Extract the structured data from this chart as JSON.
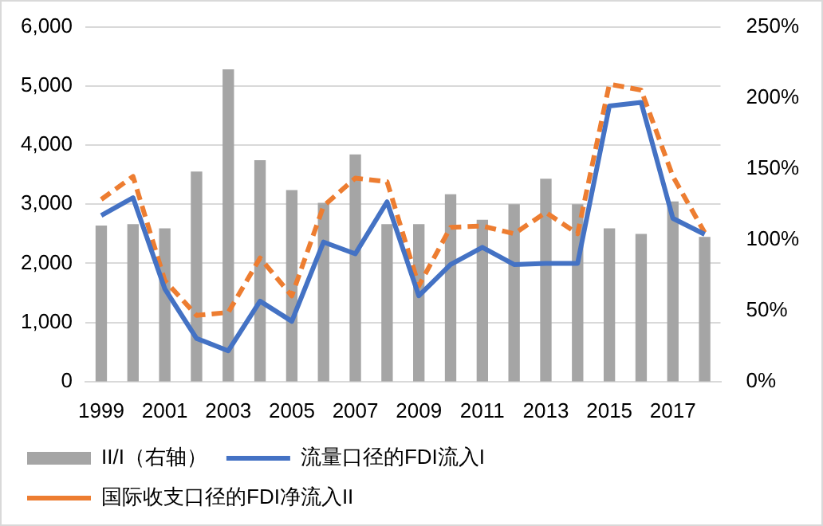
{
  "chart_data": {
    "type": "bar",
    "categories": [
      "1999",
      null,
      "2001",
      null,
      "2003",
      null,
      "2005",
      null,
      "2007",
      null,
      "2009",
      null,
      "2011",
      null,
      "2013",
      null,
      "2015",
      null,
      "2017",
      null
    ],
    "series": [
      {
        "name": "II/I（右轴）",
        "axis": "y2",
        "color": "#a5a5a5",
        "values": [
          110,
          111,
          108,
          148,
          220,
          156,
          135,
          126,
          160,
          111,
          111,
          132,
          114,
          125,
          143,
          125,
          108,
          104,
          127,
          102
        ]
      },
      {
        "name": "流量口径的FDI流入I",
        "type": "line",
        "color": "#4472c4",
        "line_style": "solid",
        "values": [
          2810,
          3110,
          1570,
          730,
          520,
          1360,
          1020,
          2360,
          2160,
          3040,
          1450,
          1980,
          2270,
          1980,
          2000,
          2000,
          4660,
          4720,
          2760,
          2490
        ]
      },
      {
        "name": "国际收支口径的FDI净流入II",
        "type": "line",
        "color": "#ed7d31",
        "line_style": "dashed",
        "values": [
          3080,
          3470,
          1710,
          1120,
          1170,
          2090,
          1450,
          2970,
          3440,
          3380,
          1620,
          2610,
          2630,
          2500,
          2860,
          2500,
          5030,
          4930,
          3470,
          2520
        ]
      }
    ],
    "ylim": [
      0,
      6000
    ],
    "yticks": [
      {
        "value": 0,
        "label": "0"
      },
      {
        "value": 1000,
        "label": "1,000"
      },
      {
        "value": 2000,
        "label": "2,000"
      },
      {
        "value": 3000,
        "label": "3,000"
      },
      {
        "value": 4000,
        "label": "4,000"
      },
      {
        "value": 5000,
        "label": "5,000"
      },
      {
        "value": 6000,
        "label": "6,000"
      }
    ],
    "y2lim": [
      0,
      250
    ],
    "y2ticks": [
      {
        "value": 0,
        "label": "0%"
      },
      {
        "value": 50,
        "label": "50%"
      },
      {
        "value": 100,
        "label": "100%"
      },
      {
        "value": 150,
        "label": "150%"
      },
      {
        "value": 200,
        "label": "200%"
      },
      {
        "value": 250,
        "label": "250%"
      }
    ],
    "grid": "y",
    "legend": "bottom",
    "marker": "none"
  }
}
